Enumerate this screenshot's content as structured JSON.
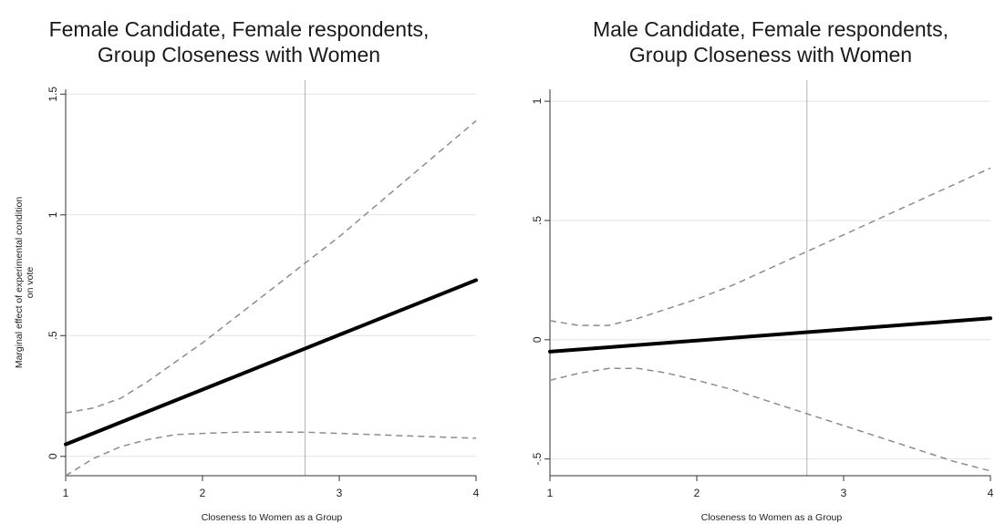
{
  "chart_data": [
    {
      "type": "line",
      "title": "Female Candidate, Female respondents,",
      "subtitle": "Group Closeness with Women",
      "xlabel": "Closeness to Women as a Group",
      "ylabel": "Marginal effect of experimental condition",
      "ylabel2": "on vote",
      "xlim": [
        1,
        4
      ],
      "ylim": [
        -0.08,
        1.52
      ],
      "xticks": [
        1,
        2,
        3,
        4
      ],
      "xtick_labels": [
        "1",
        "2",
        "3",
        "4"
      ],
      "yticks": [
        0,
        0.5,
        1,
        1.5
      ],
      "ytick_labels": [
        "0",
        ".5",
        "1",
        "1.5"
      ],
      "grid": true,
      "reference_line_x": 2.75,
      "series": [
        {
          "style": "solid",
          "x": [
            1,
            4
          ],
          "y": [
            0.05,
            0.73
          ]
        },
        {
          "style": "dashed",
          "x": [
            1,
            1.2,
            1.4,
            1.6,
            1.8,
            2,
            2.25,
            2.5,
            2.75,
            3,
            3.25,
            3.5,
            3.75,
            4
          ],
          "y": [
            0.18,
            0.2,
            0.24,
            0.31,
            0.39,
            0.47,
            0.58,
            0.69,
            0.8,
            0.91,
            1.03,
            1.15,
            1.27,
            1.39
          ]
        },
        {
          "style": "dashed",
          "x": [
            1,
            1.2,
            1.4,
            1.6,
            1.8,
            2,
            2.25,
            2.5,
            2.75,
            3,
            3.25,
            3.5,
            3.75,
            4
          ],
          "y": [
            -0.08,
            -0.01,
            0.04,
            0.07,
            0.09,
            0.095,
            0.1,
            0.1,
            0.1,
            0.095,
            0.09,
            0.085,
            0.08,
            0.075
          ]
        }
      ]
    },
    {
      "type": "line",
      "title": "Male Candidate, Female respondents,",
      "subtitle": "Group Closeness with Women",
      "xlabel": "Closeness to Women as a Group",
      "xlim": [
        1,
        4
      ],
      "ylim": [
        -0.57,
        1.05
      ],
      "xticks": [
        1,
        2,
        3,
        4
      ],
      "xtick_labels": [
        "1",
        "2",
        "3",
        "4"
      ],
      "yticks": [
        -0.5,
        0,
        0.5,
        1
      ],
      "ytick_labels": [
        "-.5",
        "0",
        ".5",
        "1"
      ],
      "grid": true,
      "reference_line_x": 2.75,
      "series": [
        {
          "style": "solid",
          "x": [
            1,
            4
          ],
          "y": [
            -0.05,
            0.09
          ]
        },
        {
          "style": "dashed",
          "x": [
            1,
            1.2,
            1.4,
            1.6,
            1.8,
            2,
            2.25,
            2.5,
            2.75,
            3,
            3.25,
            3.5,
            3.75,
            4
          ],
          "y": [
            0.08,
            0.06,
            0.06,
            0.09,
            0.13,
            0.17,
            0.23,
            0.3,
            0.37,
            0.44,
            0.51,
            0.58,
            0.65,
            0.72
          ]
        },
        {
          "style": "dashed",
          "x": [
            1,
            1.2,
            1.4,
            1.6,
            1.8,
            2,
            2.25,
            2.5,
            2.75,
            3,
            3.25,
            3.5,
            3.75,
            4
          ],
          "y": [
            -0.17,
            -0.14,
            -0.12,
            -0.12,
            -0.14,
            -0.17,
            -0.21,
            -0.26,
            -0.31,
            -0.36,
            -0.41,
            -0.46,
            -0.51,
            -0.55
          ]
        }
      ]
    }
  ]
}
